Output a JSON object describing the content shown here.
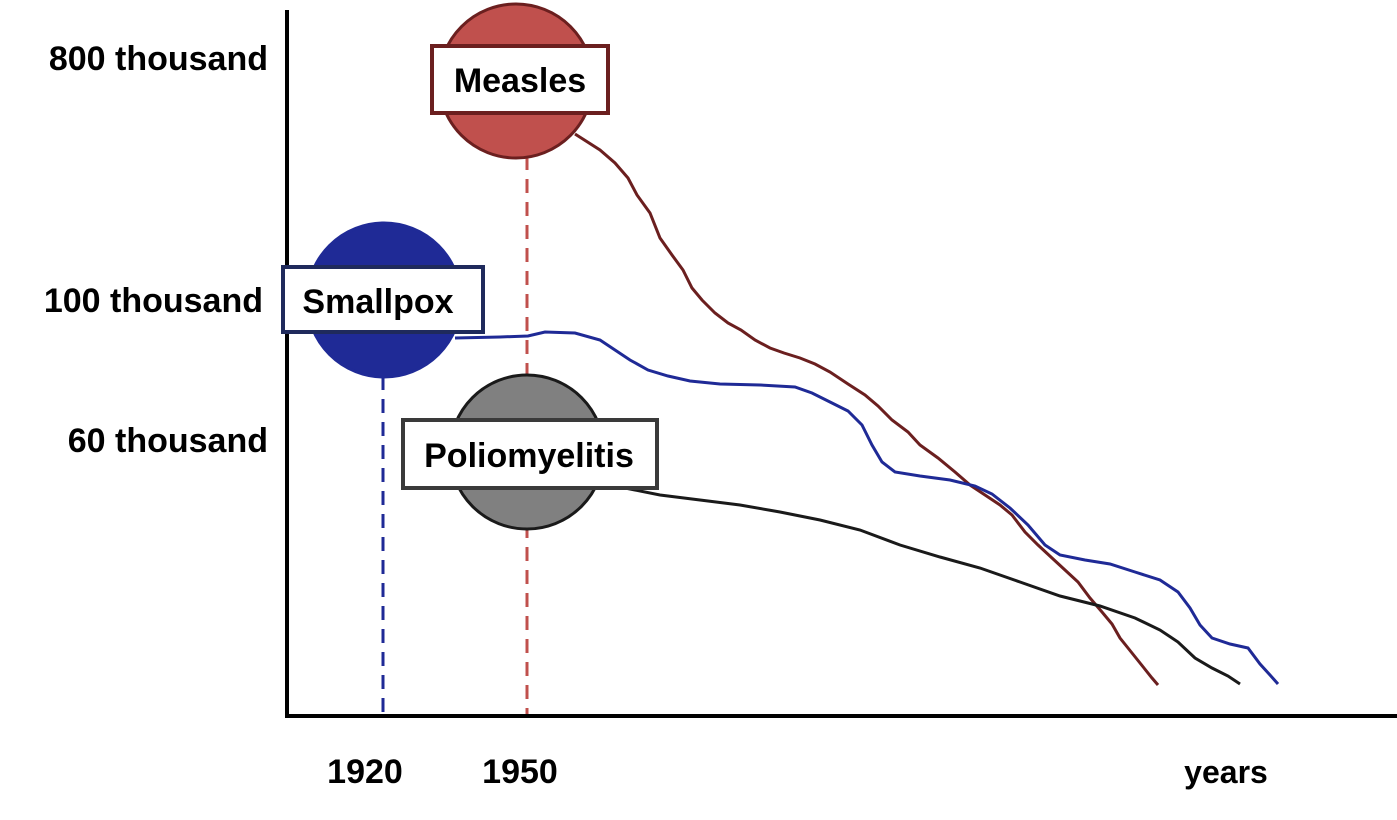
{
  "chart_data": {
    "type": "line",
    "title": "",
    "xlabel": "years",
    "ylabel": "",
    "x_ticks": [
      "1920",
      "1950"
    ],
    "y_ticks": [
      "800 thousand",
      "100 thousand",
      "60 thousand"
    ],
    "grid": false,
    "series": [
      {
        "name": "Measles",
        "color": "#6b1f1f",
        "marker_color": "#c0504d",
        "start_label": "1950",
        "start_value_label": "800 thousand"
      },
      {
        "name": "Smallpox",
        "color": "#1f2a96",
        "marker_color": "#1f2a96",
        "start_label": "1920",
        "start_value_label": "100 thousand"
      },
      {
        "name": "Poliomyelitis",
        "color": "#1a1a1a",
        "marker_color": "#808080",
        "start_label": "1950",
        "start_value_label": "60 thousand"
      }
    ]
  }
}
